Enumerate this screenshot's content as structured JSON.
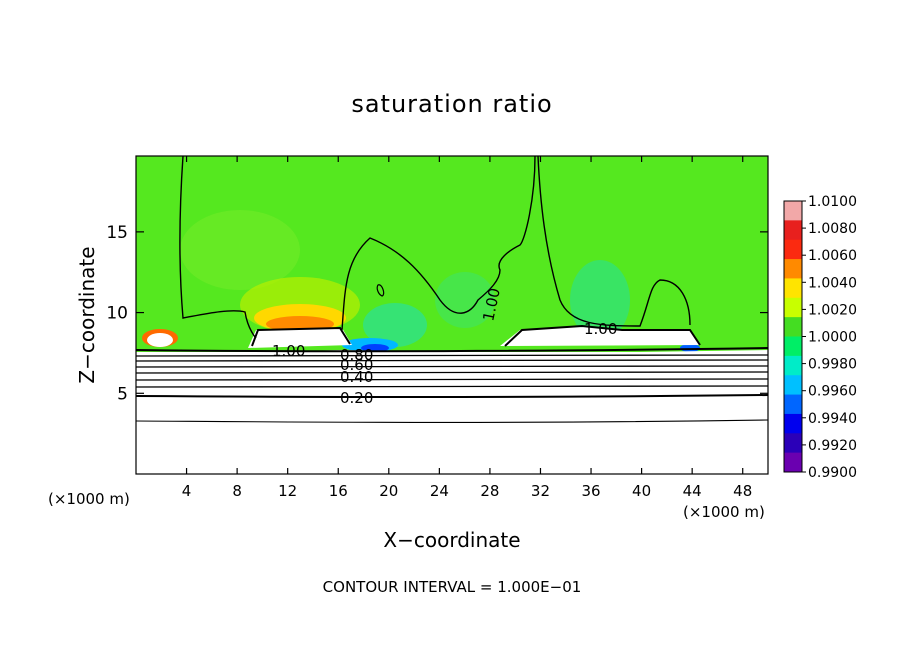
{
  "chart_data": {
    "type": "heatmap",
    "title": "saturation ratio",
    "xlabel": "X−coordinate",
    "ylabel": "Z−coordinate",
    "x_unit_left": "(×1000 m)",
    "x_unit_right": "(×1000 m)",
    "xlim": [
      0,
      50
    ],
    "ylim": [
      0,
      19.7
    ],
    "x_ticks": [
      4,
      8,
      12,
      16,
      20,
      24,
      28,
      32,
      36,
      40,
      44,
      48
    ],
    "y_ticks": [
      5,
      10,
      15
    ],
    "colorbar_ticks": [
      "1.0100",
      "1.0080",
      "1.0060",
      "1.0040",
      "1.0020",
      "1.0000",
      "0.9980",
      "0.9960",
      "0.9940",
      "0.9920",
      "0.9900"
    ],
    "colorbar_colors": [
      "#f2a8a8",
      "#e8201e",
      "#fb2a10",
      "#ff8a00",
      "#ffe400",
      "#c8ff00",
      "#44dd22",
      "#00ee66",
      "#00ecc8",
      "#00c0ff",
      "#0066ff",
      "#0000ee",
      "#2b00b8",
      "#6a00b0"
    ],
    "contour_labels": [
      "1.00",
      "1.00",
      "1.00",
      "0.80",
      "0.60",
      "0.40",
      "0.20"
    ],
    "footer": "CONTOUR INTERVAL = 1.000E−01",
    "background_color": "#55e81f"
  }
}
